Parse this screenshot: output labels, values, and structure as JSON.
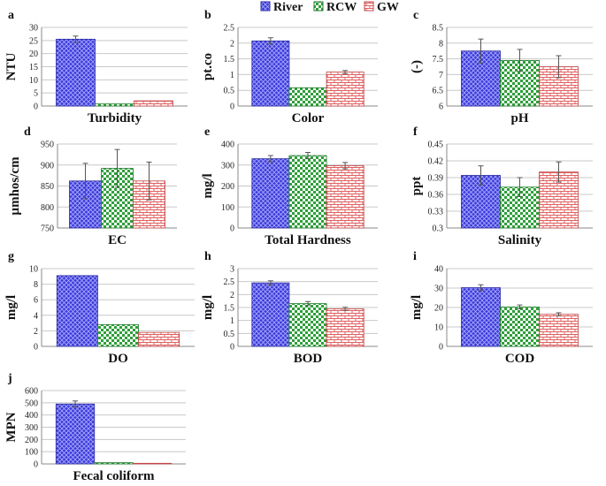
{
  "legend": [
    {
      "name": "River",
      "color": "#3a3ad6",
      "pattern": "crosshatch"
    },
    {
      "name": "RCW",
      "color": "#2e9e3a",
      "pattern": "checker"
    },
    {
      "name": "GW",
      "color": "#e06060",
      "pattern": "brick"
    }
  ],
  "chart_data": [
    {
      "id": "a",
      "type": "bar",
      "title": "Turbidity",
      "ylabel": "NTU",
      "ylim": [
        0,
        30
      ],
      "yticks": [
        "0",
        "5",
        "10",
        "15",
        "20",
        "25",
        "30"
      ],
      "series": [
        {
          "name": "River",
          "value": 25.5,
          "err": 1.2
        },
        {
          "name": "RCW",
          "value": 0.8,
          "err": 0
        },
        {
          "name": "GW",
          "value": 2.0,
          "err": 0
        }
      ]
    },
    {
      "id": "b",
      "type": "bar",
      "title": "Color",
      "ylabel": "pt.co",
      "ylim": [
        0,
        2.5
      ],
      "yticks": [
        "0",
        "0.5",
        "1",
        "1.5",
        "2",
        "2.5"
      ],
      "series": [
        {
          "name": "River",
          "value": 2.07,
          "err": 0.1
        },
        {
          "name": "RCW",
          "value": 0.58,
          "err": 0
        },
        {
          "name": "GW",
          "value": 1.08,
          "err": 0.05
        }
      ]
    },
    {
      "id": "c",
      "type": "bar",
      "title": "pH",
      "ylabel": "(-)",
      "ylim": [
        6,
        8.5
      ],
      "yticks": [
        "6",
        "6.5",
        "7",
        "7.5",
        "8",
        "8.5"
      ],
      "series": [
        {
          "name": "River",
          "value": 7.75,
          "err": 0.38
        },
        {
          "name": "RCW",
          "value": 7.45,
          "err": 0.35
        },
        {
          "name": "GW",
          "value": 7.25,
          "err": 0.35
        }
      ]
    },
    {
      "id": "d",
      "type": "bar",
      "title": "EC",
      "ylabel": "µmhos/cm",
      "ylim": [
        750,
        950
      ],
      "yticks": [
        "750",
        "800",
        "850",
        "900",
        "950"
      ],
      "series": [
        {
          "name": "River",
          "value": 862,
          "err": 42
        },
        {
          "name": "RCW",
          "value": 892,
          "err": 45
        },
        {
          "name": "GW",
          "value": 862,
          "err": 45
        }
      ]
    },
    {
      "id": "e",
      "type": "bar",
      "title": "Total Hardness",
      "ylabel": "mg/l",
      "ylim": [
        0,
        400
      ],
      "yticks": [
        "0",
        "100",
        "200",
        "300",
        "400"
      ],
      "series": [
        {
          "name": "River",
          "value": 330,
          "err": 15
        },
        {
          "name": "RCW",
          "value": 345,
          "err": 15
        },
        {
          "name": "GW",
          "value": 297,
          "err": 15
        }
      ]
    },
    {
      "id": "f",
      "type": "bar",
      "title": "Salinity",
      "ylabel": "ppt",
      "ylim": [
        0.3,
        0.45
      ],
      "yticks": [
        "0.3",
        "0.33",
        "0.36",
        "0.39",
        "0.42",
        "0.45"
      ],
      "series": [
        {
          "name": "River",
          "value": 0.394,
          "err": 0.017
        },
        {
          "name": "RCW",
          "value": 0.373,
          "err": 0.017
        },
        {
          "name": "GW",
          "value": 0.4,
          "err": 0.018
        }
      ]
    },
    {
      "id": "g",
      "type": "bar",
      "title": "DO",
      "ylabel": "mg/l",
      "ylim": [
        0,
        10
      ],
      "yticks": [
        "0",
        "2",
        "4",
        "6",
        "8",
        "10"
      ],
      "series": [
        {
          "name": "River",
          "value": 9.1,
          "err": 0
        },
        {
          "name": "RCW",
          "value": 2.8,
          "err": 0
        },
        {
          "name": "GW",
          "value": 1.8,
          "err": 0
        }
      ]
    },
    {
      "id": "h",
      "type": "bar",
      "title": "BOD",
      "ylabel": "mg/l",
      "ylim": [
        0,
        3
      ],
      "yticks": [
        "0",
        "0.5",
        "1",
        "1.5",
        "2",
        "2.5",
        "3"
      ],
      "series": [
        {
          "name": "River",
          "value": 2.45,
          "err": 0.08
        },
        {
          "name": "RCW",
          "value": 1.65,
          "err": 0.08
        },
        {
          "name": "GW",
          "value": 1.45,
          "err": 0.06
        }
      ]
    },
    {
      "id": "i",
      "type": "bar",
      "title": "COD",
      "ylabel": "mg/l",
      "ylim": [
        0,
        40
      ],
      "yticks": [
        "0",
        "10",
        "20",
        "30",
        "40"
      ],
      "series": [
        {
          "name": "River",
          "value": 30.2,
          "err": 1.5
        },
        {
          "name": "RCW",
          "value": 20.3,
          "err": 1
        },
        {
          "name": "GW",
          "value": 16.5,
          "err": 0.8
        }
      ]
    },
    {
      "id": "j",
      "type": "bar",
      "title": "Fecal coliform",
      "ylabel": "MPN",
      "ylim": [
        0,
        600
      ],
      "yticks": [
        "0",
        "100",
        "200",
        "300",
        "400",
        "500",
        "600"
      ],
      "series": [
        {
          "name": "River",
          "value": 490,
          "err": 25
        },
        {
          "name": "RCW",
          "value": 10,
          "err": 0
        },
        {
          "name": "GW",
          "value": 5,
          "err": 0
        }
      ]
    }
  ]
}
